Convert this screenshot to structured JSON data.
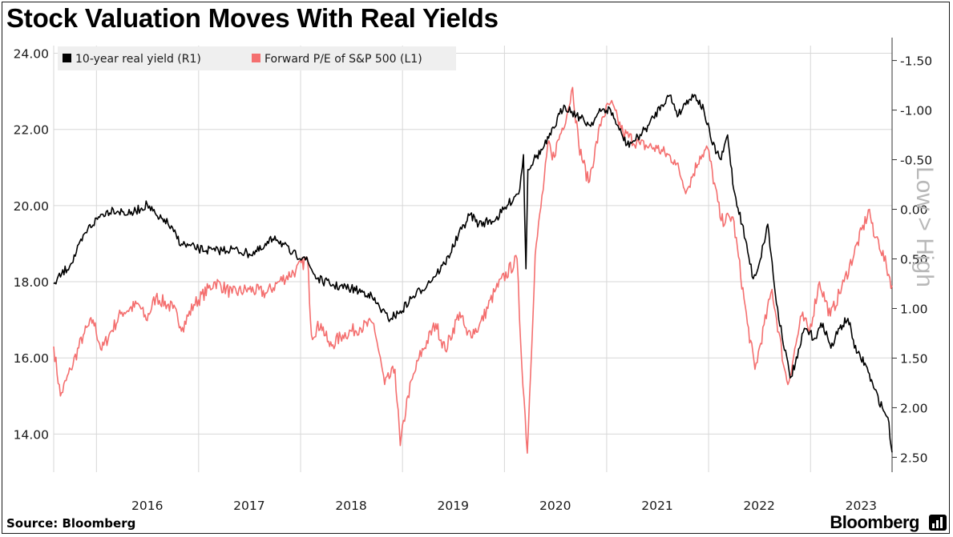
{
  "header": {
    "title": "Stock Valuation Moves With Real Yields"
  },
  "footer": {
    "source": "Source: Bloomberg",
    "brand": "Bloomberg"
  },
  "colors": {
    "real_yield": "#000000",
    "pe": "#f46f6f",
    "grid": "#d7d7d7"
  },
  "chart_data": {
    "type": "line",
    "title": "Stock Valuation Moves With Real Yields",
    "x_range": [
      "2015-08-01",
      "2023-10-20"
    ],
    "x_ticks": [
      "2016",
      "2017",
      "2018",
      "2019",
      "2020",
      "2021",
      "2022",
      "2023"
    ],
    "left_axis": {
      "ylim": [
        13.0,
        24.2
      ],
      "ticks": [
        "24.00",
        "22.00",
        "20.00",
        "18.00",
        "16.00",
        "14.00"
      ]
    },
    "right_axis": {
      "ylim": [
        -1.65,
        2.65
      ],
      "inverted": true,
      "label": "Low > High",
      "ticks": [
        "-1.50",
        "-1.00",
        "-0.50",
        "0.00",
        "0.50",
        "1.00",
        "1.50",
        "2.00",
        "2.50"
      ]
    },
    "grid": true,
    "legend_position": "top-left",
    "series": [
      {
        "name": "10-year real yield (R1)",
        "axis": "right",
        "color": "#000000",
        "points": [
          [
            "2015-08-01",
            0.75
          ],
          [
            "2015-10-01",
            0.55
          ],
          [
            "2015-12-01",
            0.2
          ],
          [
            "2016-01-20",
            0.05
          ],
          [
            "2016-03-01",
            0.0
          ],
          [
            "2016-05-01",
            0.05
          ],
          [
            "2016-07-01",
            -0.05
          ],
          [
            "2016-08-10",
            0.1
          ],
          [
            "2016-09-01",
            0.1
          ],
          [
            "2016-11-01",
            0.35
          ],
          [
            "2017-01-01",
            0.4
          ],
          [
            "2017-03-01",
            0.42
          ],
          [
            "2017-05-01",
            0.4
          ],
          [
            "2017-07-01",
            0.45
          ],
          [
            "2017-08-20",
            0.4
          ],
          [
            "2017-10-01",
            0.27
          ],
          [
            "2017-12-01",
            0.45
          ],
          [
            "2018-01-15",
            0.48
          ],
          [
            "2018-03-01",
            0.7
          ],
          [
            "2018-05-01",
            0.77
          ],
          [
            "2018-07-01",
            0.8
          ],
          [
            "2018-09-01",
            0.85
          ],
          [
            "2018-10-01",
            0.95
          ],
          [
            "2018-11-10",
            1.1
          ],
          [
            "2018-12-20",
            1.05
          ],
          [
            "2019-02-01",
            0.9
          ],
          [
            "2019-04-01",
            0.75
          ],
          [
            "2019-06-01",
            0.55
          ],
          [
            "2019-08-01",
            0.2
          ],
          [
            "2019-09-01",
            0.05
          ],
          [
            "2019-10-01",
            0.15
          ],
          [
            "2019-12-01",
            0.1
          ],
          [
            "2020-01-15",
            -0.05
          ],
          [
            "2020-02-25",
            -0.2
          ],
          [
            "2020-03-09",
            -0.55
          ],
          [
            "2020-03-18",
            0.6
          ],
          [
            "2020-03-25",
            -0.4
          ],
          [
            "2020-04-15",
            -0.5
          ],
          [
            "2020-05-15",
            -0.6
          ],
          [
            "2020-06-15",
            -0.75
          ],
          [
            "2020-08-01",
            -1.05
          ],
          [
            "2020-09-15",
            -0.95
          ],
          [
            "2020-11-01",
            -0.85
          ],
          [
            "2020-12-15",
            -1.0
          ],
          [
            "2021-01-15",
            -1.0
          ],
          [
            "2021-02-15",
            -0.8
          ],
          [
            "2021-03-15",
            -0.65
          ],
          [
            "2021-04-15",
            -0.7
          ],
          [
            "2021-06-01",
            -0.85
          ],
          [
            "2021-07-15",
            -1.05
          ],
          [
            "2021-08-15",
            -1.15
          ],
          [
            "2021-09-15",
            -0.95
          ],
          [
            "2021-10-15",
            -1.1
          ],
          [
            "2021-11-15",
            -1.15
          ],
          [
            "2021-12-15",
            -1.0
          ],
          [
            "2022-01-15",
            -0.65
          ],
          [
            "2022-02-15",
            -0.5
          ],
          [
            "2022-03-10",
            -0.75
          ],
          [
            "2022-04-01",
            -0.2
          ],
          [
            "2022-05-01",
            0.15
          ],
          [
            "2022-06-10",
            0.7
          ],
          [
            "2022-07-01",
            0.55
          ],
          [
            "2022-08-01",
            0.15
          ],
          [
            "2022-09-01",
            0.95
          ],
          [
            "2022-10-20",
            1.7
          ],
          [
            "2022-11-15",
            1.5
          ],
          [
            "2022-12-10",
            1.2
          ],
          [
            "2023-01-15",
            1.3
          ],
          [
            "2023-02-15",
            1.15
          ],
          [
            "2023-03-15",
            1.4
          ],
          [
            "2023-04-15",
            1.2
          ],
          [
            "2023-05-15",
            1.1
          ],
          [
            "2023-06-15",
            1.45
          ],
          [
            "2023-07-15",
            1.55
          ],
          [
            "2023-08-15",
            1.8
          ],
          [
            "2023-09-15",
            2.0
          ],
          [
            "2023-10-05",
            2.1
          ],
          [
            "2023-10-20",
            2.45
          ]
        ]
      },
      {
        "name": "Forward P/E of S&P 500 (L1)",
        "axis": "left",
        "color": "#f46f6f",
        "points": [
          [
            "2015-08-01",
            16.3
          ],
          [
            "2015-08-25",
            15.0
          ],
          [
            "2015-10-01",
            15.7
          ],
          [
            "2015-11-15",
            16.6
          ],
          [
            "2015-12-20",
            17.0
          ],
          [
            "2016-01-20",
            16.2
          ],
          [
            "2016-02-15",
            16.6
          ],
          [
            "2016-04-01",
            17.2
          ],
          [
            "2016-06-01",
            17.4
          ],
          [
            "2016-06-27",
            17.0
          ],
          [
            "2016-08-01",
            17.6
          ],
          [
            "2016-10-01",
            17.3
          ],
          [
            "2016-11-04",
            16.8
          ],
          [
            "2016-12-15",
            17.4
          ],
          [
            "2017-03-01",
            18.0
          ],
          [
            "2017-05-01",
            17.7
          ],
          [
            "2017-07-01",
            17.8
          ],
          [
            "2017-09-01",
            17.7
          ],
          [
            "2017-10-15",
            18.0
          ],
          [
            "2017-12-15",
            18.3
          ],
          [
            "2018-01-26",
            18.6
          ],
          [
            "2018-02-09",
            16.6
          ],
          [
            "2018-03-15",
            16.9
          ],
          [
            "2018-04-15",
            16.3
          ],
          [
            "2018-06-01",
            16.6
          ],
          [
            "2018-08-01",
            16.8
          ],
          [
            "2018-09-20",
            16.9
          ],
          [
            "2018-10-29",
            15.3
          ],
          [
            "2018-12-05",
            15.7
          ],
          [
            "2018-12-24",
            13.7
          ],
          [
            "2019-01-20",
            15.0
          ],
          [
            "2019-03-01",
            16.0
          ],
          [
            "2019-04-30",
            16.9
          ],
          [
            "2019-06-03",
            16.2
          ],
          [
            "2019-07-25",
            17.2
          ],
          [
            "2019-08-20",
            16.6
          ],
          [
            "2019-10-01",
            16.8
          ],
          [
            "2019-12-01",
            17.8
          ],
          [
            "2020-02-15",
            18.6
          ],
          [
            "2020-02-28",
            16.4
          ],
          [
            "2020-03-23",
            13.5
          ],
          [
            "2020-04-20",
            18.7
          ],
          [
            "2020-06-08",
            21.7
          ],
          [
            "2020-06-20",
            21.2
          ],
          [
            "2020-08-15",
            22.5
          ],
          [
            "2020-09-01",
            23.1
          ],
          [
            "2020-09-23",
            21.6
          ],
          [
            "2020-10-28",
            20.6
          ],
          [
            "2020-12-15",
            22.3
          ],
          [
            "2021-01-15",
            22.7
          ],
          [
            "2021-03-01",
            21.9
          ],
          [
            "2021-05-01",
            21.6
          ],
          [
            "2021-07-01",
            21.5
          ],
          [
            "2021-09-01",
            21.2
          ],
          [
            "2021-10-15",
            20.4
          ],
          [
            "2021-12-01",
            21.3
          ],
          [
            "2021-12-29",
            21.5
          ],
          [
            "2022-02-15",
            19.6
          ],
          [
            "2022-03-29",
            19.7
          ],
          [
            "2022-05-20",
            16.9
          ],
          [
            "2022-06-16",
            15.7
          ],
          [
            "2022-08-16",
            17.8
          ],
          [
            "2022-09-30",
            15.7
          ],
          [
            "2022-10-12",
            15.3
          ],
          [
            "2022-11-30",
            17.1
          ],
          [
            "2022-12-28",
            16.7
          ],
          [
            "2023-02-02",
            18.0
          ],
          [
            "2023-03-13",
            17.1
          ],
          [
            "2023-05-01",
            18.0
          ],
          [
            "2023-07-31",
            19.9
          ],
          [
            "2023-08-15",
            19.2
          ],
          [
            "2023-09-01",
            19.1
          ],
          [
            "2023-10-20",
            17.9
          ]
        ]
      }
    ]
  }
}
